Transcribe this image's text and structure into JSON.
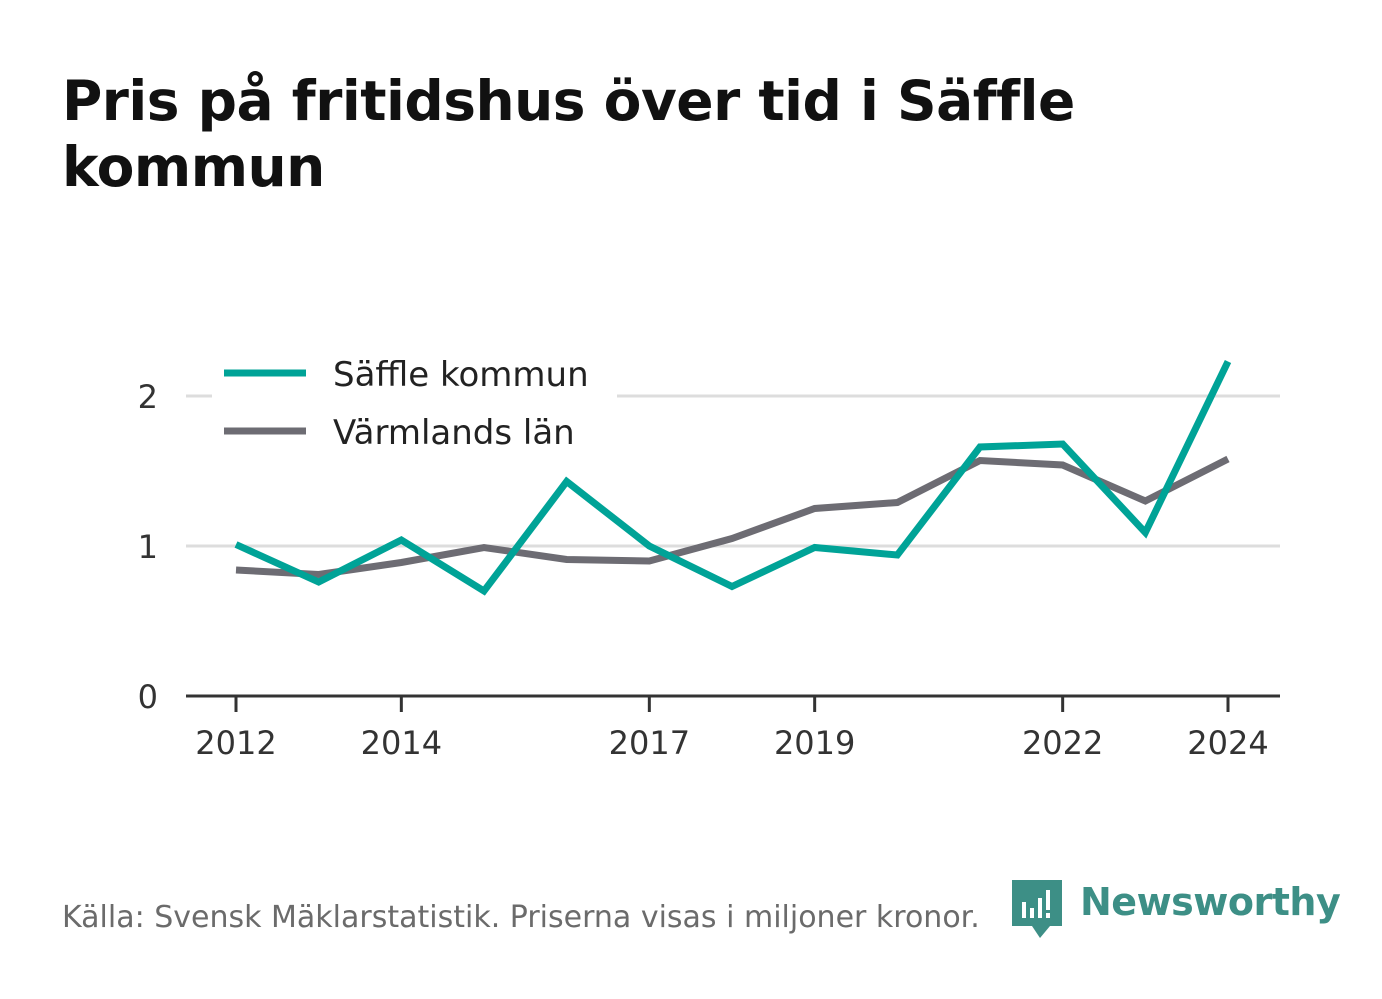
{
  "title": "Pris på fritidshus över tid i Säffle kommun",
  "footer": "Källa: Svensk Mäklarstatistik. Priserna visas i miljoner kronor.",
  "brand": "Newsworthy",
  "colors": {
    "saffle": "#00a397",
    "varmland": "#6d6c73",
    "grid": "#dddddd",
    "axis": "#333333",
    "brand": "#3d8f86"
  },
  "chart_data": {
    "type": "line",
    "x": [
      2012,
      2013,
      2014,
      2015,
      2016,
      2017,
      2018,
      2019,
      2020,
      2021,
      2022,
      2023,
      2024
    ],
    "x_ticks": [
      "2012",
      "2014",
      "2017",
      "2019",
      "2022",
      "2024"
    ],
    "y_ticks": [
      "0",
      "1",
      "2"
    ],
    "ylim": [
      0,
      2.3
    ],
    "grid": true,
    "legend_position": "top-left",
    "series": [
      {
        "name": "Säffle kommun",
        "values": [
          1.01,
          0.76,
          1.04,
          0.7,
          1.43,
          1.0,
          0.73,
          0.99,
          0.94,
          1.66,
          1.68,
          1.09,
          2.23
        ]
      },
      {
        "name": "Värmlands län",
        "values": [
          0.84,
          0.81,
          0.89,
          0.99,
          0.91,
          0.9,
          1.05,
          1.25,
          1.29,
          1.57,
          1.54,
          1.3,
          1.58
        ]
      }
    ]
  }
}
